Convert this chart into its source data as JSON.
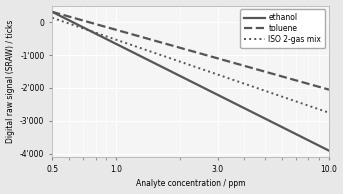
{
  "xlabel": "Analyte concentration / ppm",
  "ylabel": "Digital raw signal (SRAW) / ticks",
  "xlim": [
    0.5,
    10
  ],
  "ylim": [
    -4100,
    500
  ],
  "xticks": [
    0.5,
    1,
    3,
    10
  ],
  "xtick_labels": [
    "0.5",
    "1",
    "3",
    "10"
  ],
  "yticks": [
    0,
    -1000,
    -2000,
    -3000,
    -4000
  ],
  "ytick_labels": [
    "0",
    "-1'000",
    "-2'000",
    "-3'000",
    "-4'000"
  ],
  "line_params": [
    {
      "label": "ethanol",
      "style": "-",
      "lw": 1.6,
      "y_at_05": 310,
      "y_at_10": -3900
    },
    {
      "label": "toluene",
      "style": "--",
      "lw": 1.6,
      "y_at_05": 310,
      "y_at_10": -2050
    },
    {
      "label": "ISO 2-gas mix",
      "style": ":",
      "lw": 1.4,
      "y_at_05": 130,
      "y_at_10": -2750
    }
  ],
  "line_color": "#555555",
  "legend_loc": "upper right",
  "background_color": "#e8e8e8",
  "plot_bg_color": "#f5f5f5",
  "grid_color": "#ffffff",
  "font_size": 5.5,
  "legend_font_size": 5.5
}
